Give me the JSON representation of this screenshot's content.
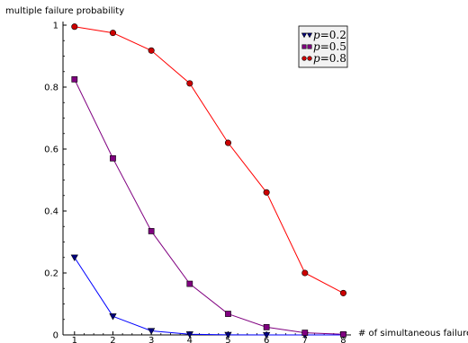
{
  "chart_data": {
    "type": "line",
    "title": "",
    "xlabel": "# of simultaneous failures",
    "ylabel": "multiple failure probability",
    "x": [
      1,
      2,
      3,
      4,
      5,
      6,
      7,
      8
    ],
    "xlim": [
      0.7,
      8.2
    ],
    "ylim": [
      0,
      1
    ],
    "xticks": [
      "1",
      "2",
      "3",
      "4",
      "5",
      "6",
      "7",
      "8"
    ],
    "yticks": [
      "0",
      "0.2",
      "0.4",
      "0.6",
      "0.8",
      "1"
    ],
    "grid": false,
    "legend_position": "top-right",
    "series": [
      {
        "name": "p=0.2",
        "legend_var": "p",
        "legend_eq": "=0.2",
        "marker": "triangle-down",
        "line_color": "#0000ff",
        "marker_fill": "#000080",
        "values": [
          0.25,
          0.06,
          0.013,
          0.002,
          0.0003,
          0.0,
          0.0,
          0.0
        ]
      },
      {
        "name": "p=0.5",
        "legend_var": "p",
        "legend_eq": "=0.5",
        "marker": "square",
        "line_color": "#800080",
        "marker_fill": "#800080",
        "values": [
          0.825,
          0.57,
          0.335,
          0.165,
          0.068,
          0.025,
          0.007,
          0.002
        ]
      },
      {
        "name": "p=0.8",
        "legend_var": "p",
        "legend_eq": "=0.8",
        "marker": "circle",
        "line_color": "#ff0000",
        "marker_fill": "#cc0000",
        "values": [
          0.995,
          0.975,
          0.918,
          0.812,
          0.62,
          0.46,
          0.2,
          0.135
        ]
      }
    ]
  }
}
